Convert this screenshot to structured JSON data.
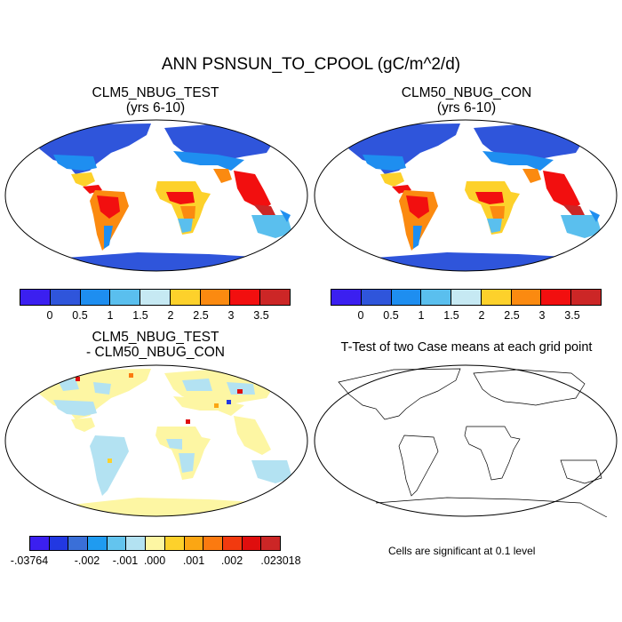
{
  "title": "ANN PSNSUN_TO_CPOOL (gC/m^2/d)",
  "panels": {
    "test": {
      "title_line1": "CLM5_NBUG_TEST",
      "title_line2": "(yrs 6-10)"
    },
    "control": {
      "title_line1": "CLM50_NBUG_CON",
      "title_line2": "(yrs 6-10)"
    },
    "diff": {
      "title_line1": "CLM5_NBUG_TEST",
      "title_line2": "- CLM50_NBUG_CON"
    },
    "ttest": {
      "title": "T-Test of two Case means at each grid point",
      "note": "Cells are significant at 0.1 level"
    }
  },
  "colorbars": {
    "field": {
      "colors": [
        "#3b1ff0",
        "#2f55db",
        "#1e8ef0",
        "#5abfee",
        "#c6e9f3",
        "#fdd12b",
        "#fb8a10",
        "#f20f0f",
        "#cc2626"
      ],
      "labels": [
        "0",
        "0.5",
        "1",
        "1.5",
        "2",
        "2.5",
        "3",
        "3.5"
      ]
    },
    "diff": {
      "colors": [
        "#3b1ff0",
        "#2238e2",
        "#3a6fd8",
        "#1f9bf0",
        "#63c4ee",
        "#b3e2f2",
        "#fdf6a3",
        "#fdd12b",
        "#fba613",
        "#fb7a10",
        "#f23a0f",
        "#df0e0e",
        "#cc2626"
      ],
      "labels": [
        "-.03764",
        "-.002",
        "-.001",
        ".000",
        ".001",
        ".002",
        ".023018"
      ]
    }
  }
}
